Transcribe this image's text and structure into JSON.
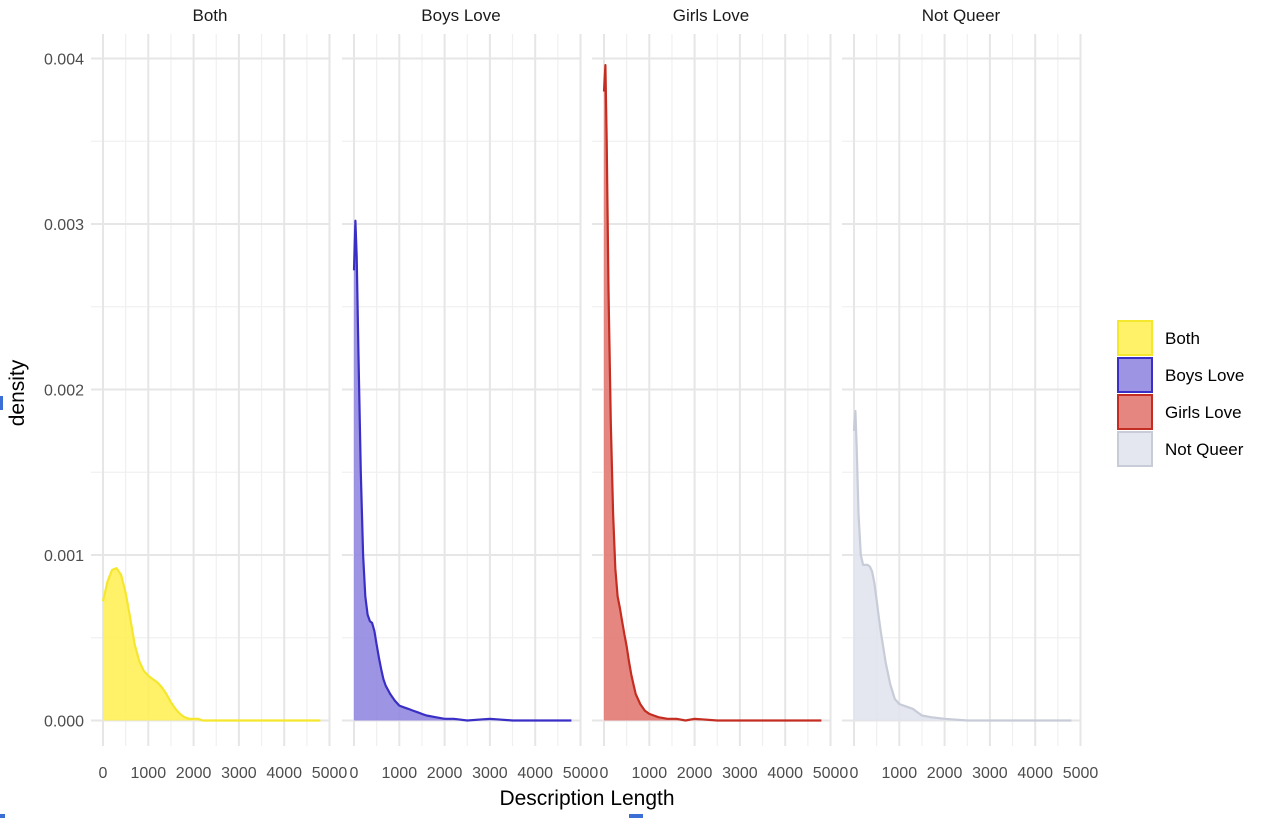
{
  "chart_data": {
    "type": "area",
    "subtype": "density (faceted)",
    "facets": [
      "Both",
      "Boys Love",
      "Girls Love",
      "Not Queer"
    ],
    "xlabel": "Description Length",
    "ylabel": "density",
    "xlim": [
      0,
      5000
    ],
    "ylim": [
      0,
      0.004
    ],
    "x_ticks": [
      0,
      1000,
      2000,
      3000,
      4000,
      5000
    ],
    "x_tick_labels": [
      "0",
      "1000",
      "2000",
      "3000",
      "4000",
      "5000"
    ],
    "y_ticks": [
      0.0,
      0.001,
      0.002,
      0.003,
      0.004
    ],
    "y_tick_labels": [
      "0.000",
      "0.001",
      "0.002",
      "0.003",
      "0.004"
    ],
    "grid": true,
    "legend_position": "right",
    "series": [
      {
        "name": "Both",
        "fill": "#FFF04D",
        "stroke": "#F5E62E",
        "x": [
          0,
          100,
          200,
          300,
          400,
          500,
          600,
          700,
          800,
          900,
          1000,
          1100,
          1200,
          1300,
          1400,
          1500,
          1600,
          1700,
          1800,
          1900,
          2000,
          2100,
          2200,
          2400,
          2600,
          3000,
          3500,
          4000,
          4500,
          4800
        ],
        "y": [
          0.00072,
          0.00084,
          0.00091,
          0.00092,
          0.00088,
          0.00077,
          0.00062,
          0.00046,
          0.00036,
          0.0003,
          0.00027,
          0.00025,
          0.00023,
          0.0002,
          0.00016,
          0.00011,
          7e-05,
          4e-05,
          2e-05,
          1e-05,
          1e-05,
          1e-05,
          0.0,
          0.0,
          0.0,
          0.0,
          0.0,
          0.0,
          0.0,
          0.0
        ]
      },
      {
        "name": "Boys Love",
        "fill": "#8C82DE",
        "stroke": "#3A2FC4",
        "x": [
          0,
          30,
          60,
          100,
          150,
          200,
          250,
          300,
          350,
          400,
          450,
          500,
          550,
          600,
          650,
          700,
          800,
          900,
          1000,
          1100,
          1200,
          1300,
          1400,
          1500,
          1600,
          1800,
          2000,
          2200,
          2500,
          3000,
          3500,
          4000,
          4500,
          4800
        ],
        "y": [
          0.00272,
          0.00302,
          0.0028,
          0.0022,
          0.0015,
          0.001,
          0.00075,
          0.00064,
          0.0006,
          0.00059,
          0.00054,
          0.00046,
          0.00038,
          0.00031,
          0.00025,
          0.00021,
          0.00016,
          0.00012,
          9e-05,
          8e-05,
          7e-05,
          6e-05,
          5e-05,
          4e-05,
          3e-05,
          2e-05,
          1e-05,
          1e-05,
          0.0,
          1e-05,
          0.0,
          0.0,
          0.0,
          0.0
        ]
      },
      {
        "name": "Girls Love",
        "fill": "#E0726A",
        "stroke": "#C42D21",
        "x": [
          0,
          30,
          60,
          100,
          150,
          200,
          250,
          300,
          350,
          400,
          450,
          500,
          550,
          600,
          650,
          700,
          800,
          900,
          1000,
          1100,
          1200,
          1400,
          1600,
          1800,
          2000,
          2500,
          3000,
          3500,
          4000,
          4500,
          4800
        ],
        "y": [
          0.0038,
          0.00396,
          0.0035,
          0.0026,
          0.0018,
          0.00125,
          0.00092,
          0.00075,
          0.00068,
          0.0006,
          0.00052,
          0.00045,
          0.00036,
          0.00028,
          0.00022,
          0.00016,
          0.0001,
          6e-05,
          4e-05,
          3e-05,
          2e-05,
          1e-05,
          1e-05,
          0.0,
          1e-05,
          0.0,
          0.0,
          0.0,
          0.0,
          0.0,
          0.0
        ]
      },
      {
        "name": "Not Queer",
        "fill": "#DFE3EC",
        "stroke": "#C7CCD8",
        "x": [
          0,
          30,
          60,
          100,
          150,
          200,
          250,
          300,
          350,
          400,
          450,
          500,
          550,
          600,
          700,
          800,
          900,
          1000,
          1100,
          1200,
          1300,
          1400,
          1500,
          1700,
          2000,
          2500,
          3000,
          3500,
          4000,
          4500,
          4800
        ],
        "y": [
          0.00175,
          0.00187,
          0.00165,
          0.00125,
          0.001,
          0.00094,
          0.00094,
          0.00094,
          0.00093,
          0.0009,
          0.00083,
          0.00073,
          0.00062,
          0.00052,
          0.00035,
          0.00022,
          0.00013,
          0.0001,
          9e-05,
          8e-05,
          7e-05,
          5e-05,
          3e-05,
          2e-05,
          1e-05,
          0.0,
          0.0,
          0.0,
          0.0,
          0.0,
          0.0
        ]
      }
    ]
  }
}
